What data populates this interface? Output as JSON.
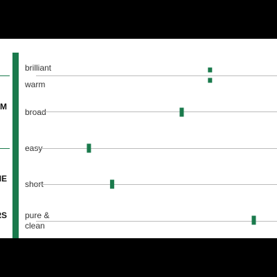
{
  "colors": {
    "accent": "#1a7a4c",
    "grid": "#bbbbbb",
    "background": "#ffffff",
    "frame": "#000000"
  },
  "categories": [
    {
      "label": "",
      "top": 0
    },
    {
      "label": "M",
      "top": 0
    },
    {
      "label": "",
      "top": 0
    },
    {
      "label": "ME",
      "top": 0
    },
    {
      "label": "RS",
      "top": 0
    }
  ],
  "chart_data": {
    "type": "scatter",
    "xlim": [
      0,
      1
    ],
    "rows": [
      {
        "label": "brilliant",
        "values": [
          0.74
        ]
      },
      {
        "label": "warm",
        "values": [
          0.74
        ]
      },
      {
        "label": "broad",
        "values": [
          0.63
        ]
      },
      {
        "label": "easy",
        "values": [
          0.27
        ]
      },
      {
        "label": "short",
        "values": [
          0.36
        ]
      },
      {
        "label": "pure & clean",
        "values": [
          0.91
        ]
      }
    ],
    "grid": true
  },
  "labels": {
    "brilliant": "brilliant",
    "warm": "warm",
    "broad": "broad",
    "easy": "easy",
    "short": "short",
    "pure1": "pure &",
    "pure2": "clean"
  }
}
